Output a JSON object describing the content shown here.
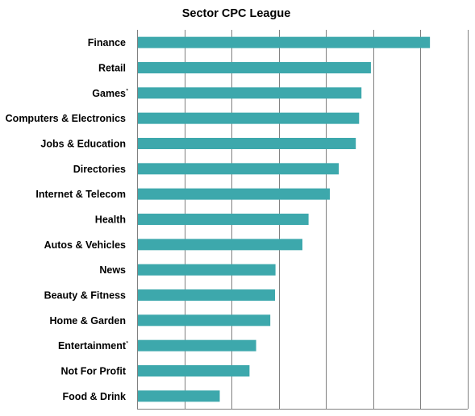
{
  "chart_data": {
    "type": "bar",
    "orientation": "horizontal",
    "title": "Sector CPC League",
    "xlabel": "",
    "ylabel": "",
    "categories": [
      "Finance",
      "Retail",
      "Games",
      "Computers & Electronics",
      "Jobs & Education",
      "Directories",
      "Internet & Telecom",
      "Health",
      "Autos & Vehicles",
      "News",
      "Beauty & Fitness",
      "Home & Garden",
      "Entertainment",
      "Not For Profit",
      "Food & Drink"
    ],
    "footnote_marks": [
      "",
      "",
      "*",
      "",
      "",
      "",
      "",
      "",
      "",
      "",
      "",
      "",
      "*",
      "",
      ""
    ],
    "values": [
      6.2,
      4.95,
      4.75,
      4.7,
      4.63,
      4.27,
      4.08,
      3.63,
      3.5,
      2.93,
      2.92,
      2.82,
      2.52,
      2.38,
      1.75
    ],
    "xlim": [
      0,
      7
    ],
    "xtick_labels_shown": false,
    "grid": true,
    "legend": "none",
    "bar_color": "#3DA8AC"
  }
}
